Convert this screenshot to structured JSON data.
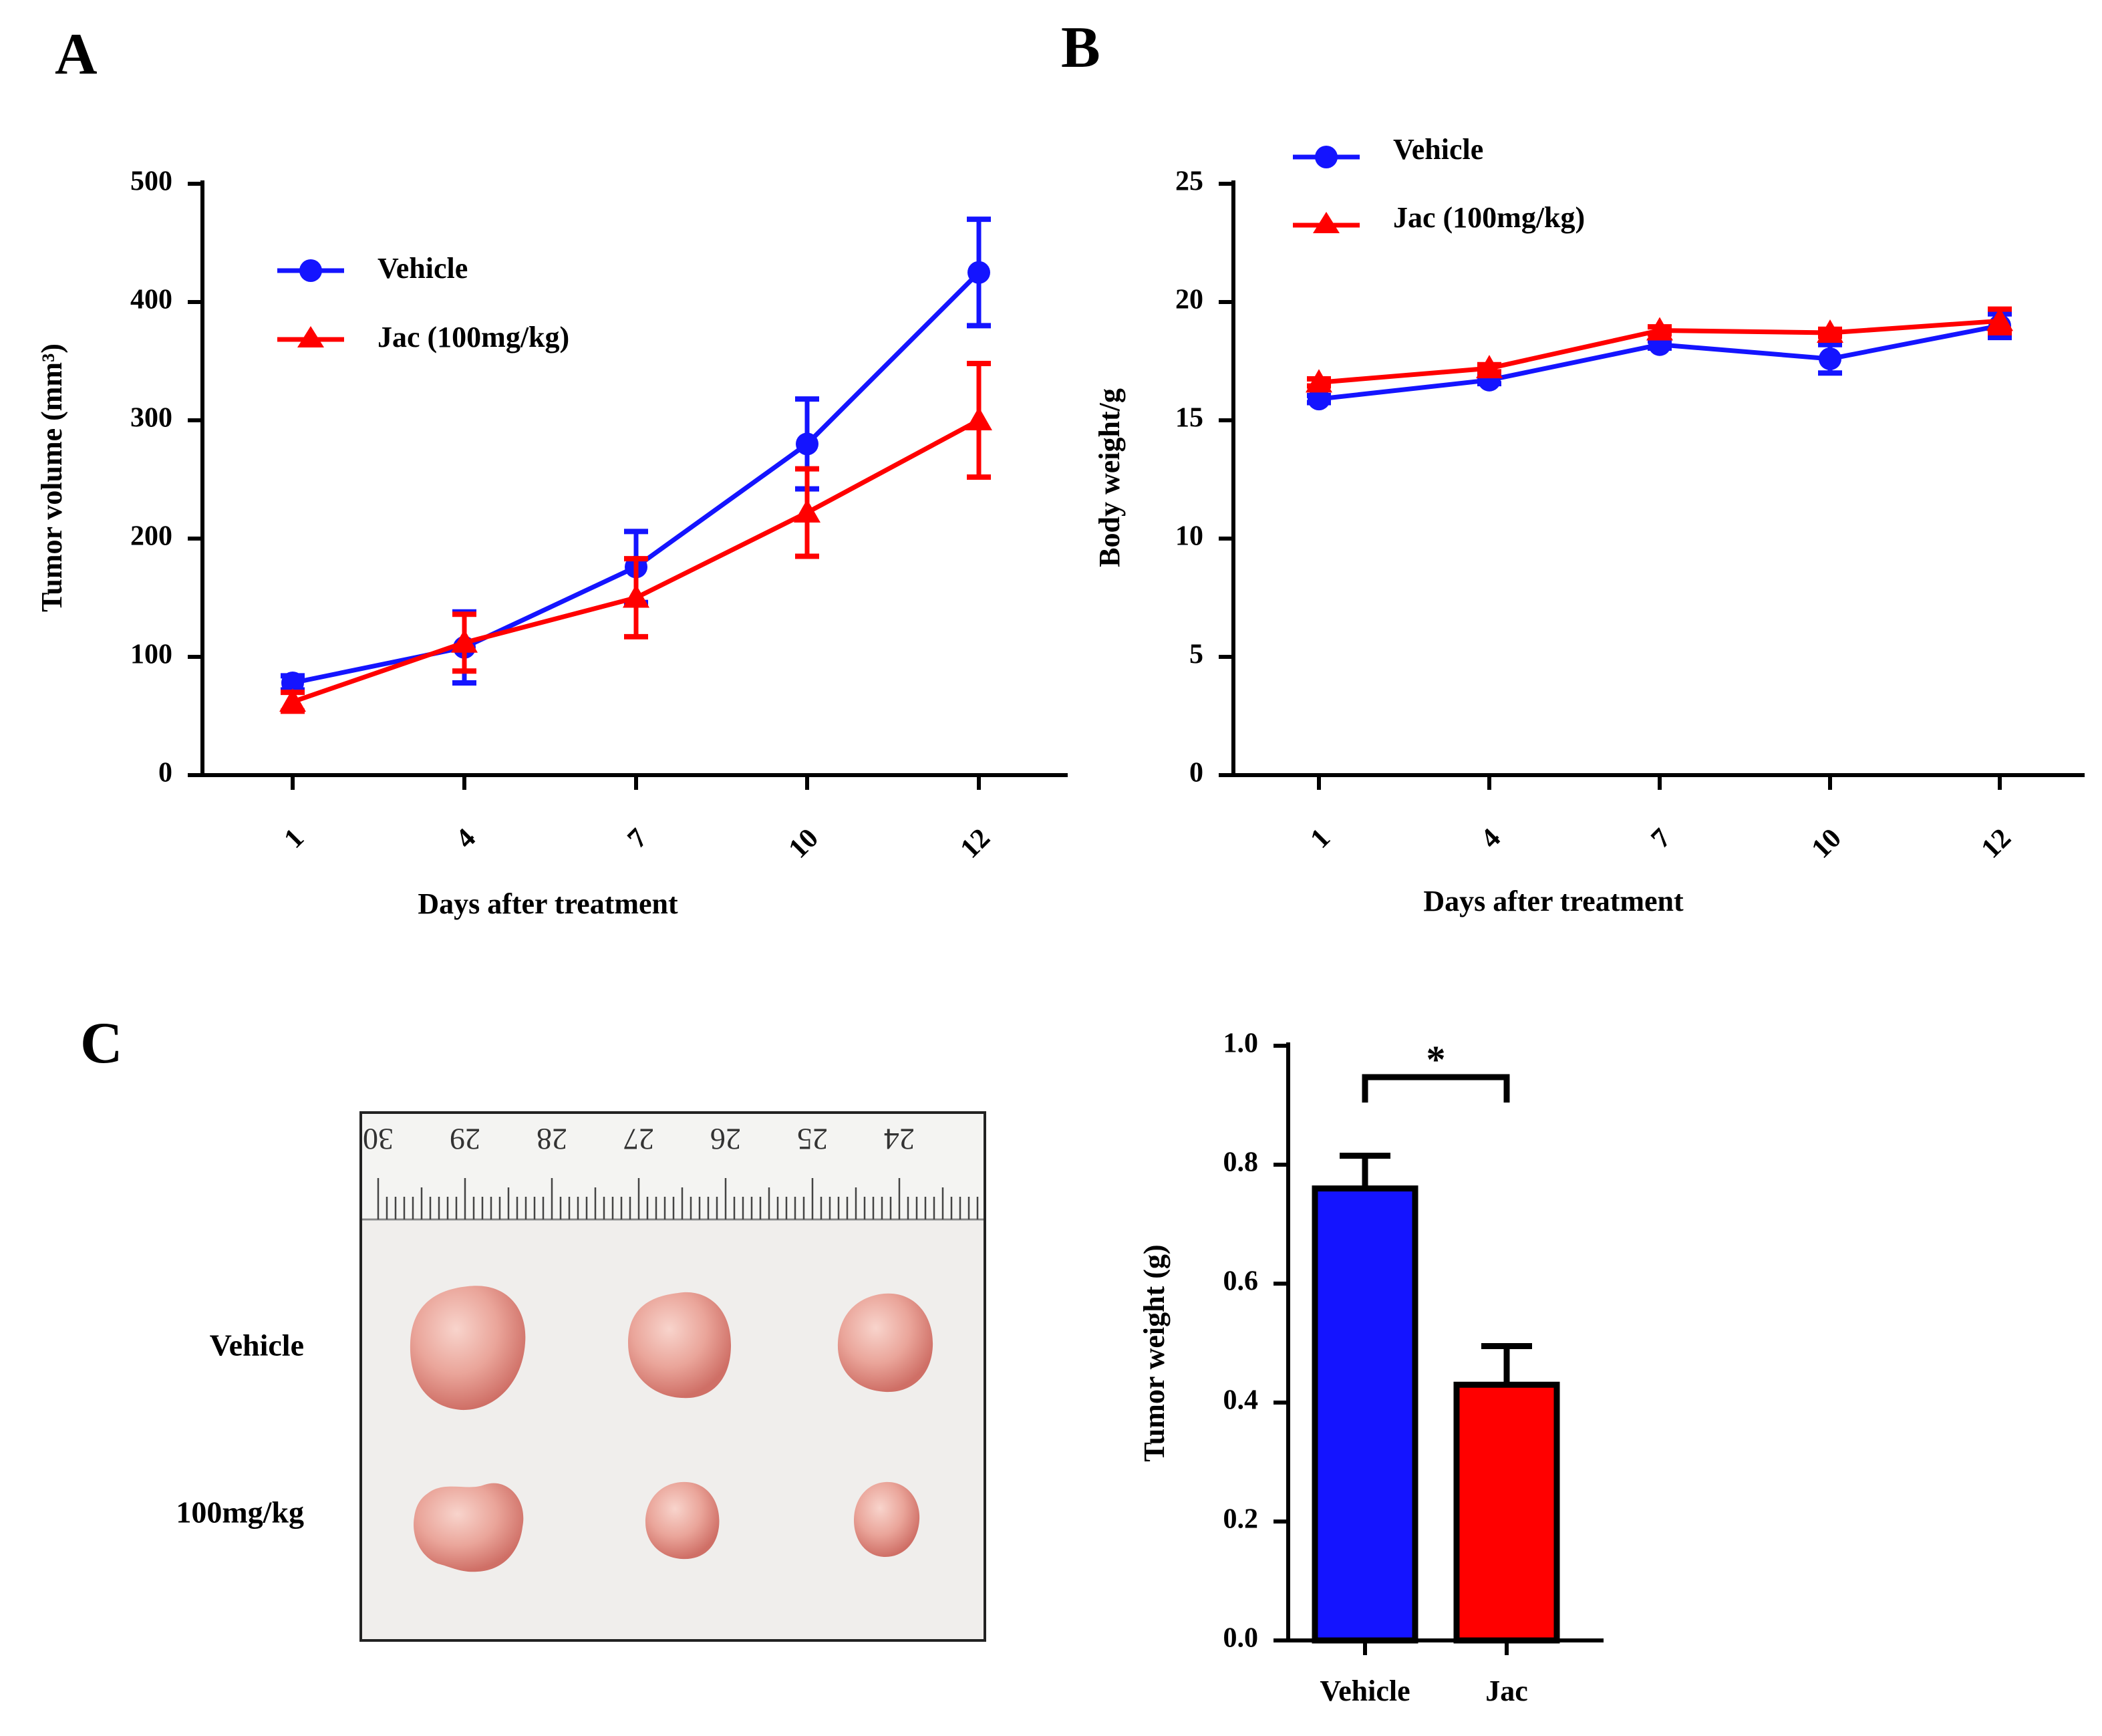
{
  "colors": {
    "vehicle": "#1414ff",
    "jac": "#ff0000",
    "axis": "#000000"
  },
  "panels": {
    "a": "A",
    "b": "B",
    "c": "C"
  },
  "photo": {
    "ruler_numbers": [
      "30",
      "29",
      "28",
      "27",
      "26",
      "25",
      "24"
    ],
    "row_labels": [
      "Vehicle",
      "100mg/kg"
    ]
  },
  "chart_data": [
    {
      "id": "A",
      "type": "line",
      "title": "",
      "xlabel": "Days after treatment",
      "ylabel": "Tumor volume (mm³)",
      "categories": [
        "1",
        "4",
        "7",
        "10",
        "12"
      ],
      "ylim": [
        0,
        500
      ],
      "yticks": [
        "0",
        "100",
        "200",
        "300",
        "400",
        "500"
      ],
      "legend_position": "top-left",
      "series": [
        {
          "name": "Vehicle",
          "marker": "circle",
          "color": "#1414ff",
          "values": [
            78,
            108,
            176,
            280,
            425
          ],
          "errors": [
            6,
            30,
            30,
            38,
            45
          ]
        },
        {
          "name": "Jac (100mg/kg)",
          "marker": "triangle",
          "color": "#ff0000",
          "values": [
            62,
            112,
            150,
            222,
            300
          ],
          "errors": [
            8,
            24,
            33,
            37,
            48
          ]
        }
      ]
    },
    {
      "id": "B",
      "type": "line",
      "title": "",
      "xlabel": "Days after treatment",
      "ylabel": "Body weight/g",
      "categories": [
        "1",
        "4",
        "7",
        "10",
        "12"
      ],
      "ylim": [
        0,
        25
      ],
      "yticks": [
        "0",
        "5",
        "10",
        "15",
        "20",
        "25"
      ],
      "legend_position": "top-left",
      "series": [
        {
          "name": "Vehicle",
          "marker": "circle",
          "color": "#1414ff",
          "values": [
            15.9,
            16.7,
            18.2,
            17.6,
            19.0
          ],
          "errors": [
            0.15,
            0.15,
            0.15,
            0.6,
            0.5
          ]
        },
        {
          "name": "Jac (100mg/kg)",
          "marker": "triangle",
          "color": "#ff0000",
          "values": [
            16.6,
            17.2,
            18.8,
            18.7,
            19.2
          ],
          "errors": [
            0.15,
            0.15,
            0.15,
            0.15,
            0.5
          ]
        }
      ]
    },
    {
      "id": "C",
      "type": "bar",
      "title": "",
      "xlabel": "",
      "ylabel": "Tumor weight (g)",
      "categories": [
        "Vehicle",
        "Jac"
      ],
      "ylim": [
        0,
        1.0
      ],
      "yticks": [
        "0.0",
        "0.2",
        "0.4",
        "0.6",
        "0.8",
        "1.0"
      ],
      "series": [
        {
          "name": "Tumor weight",
          "values": [
            0.76,
            0.43
          ],
          "errors": [
            0.055,
            0.065
          ],
          "colors": [
            "#1414ff",
            "#ff0000"
          ]
        }
      ],
      "significance": "*"
    }
  ]
}
